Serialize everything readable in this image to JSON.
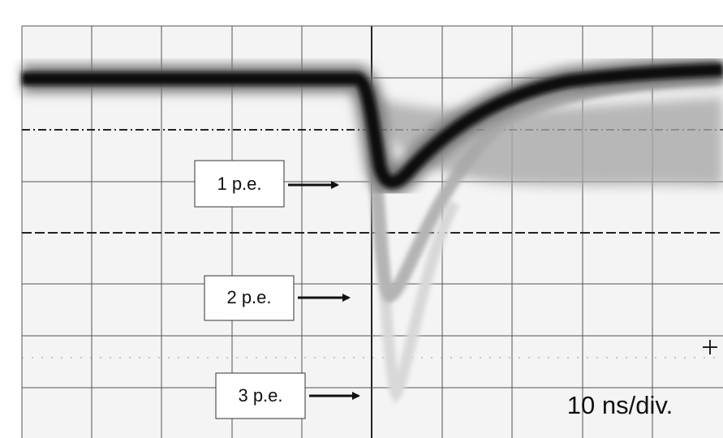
{
  "labels": [
    "1 p.e.",
    "2 p.e.",
    "3 p.e."
  ],
  "scale": "10 ns/div."
}
